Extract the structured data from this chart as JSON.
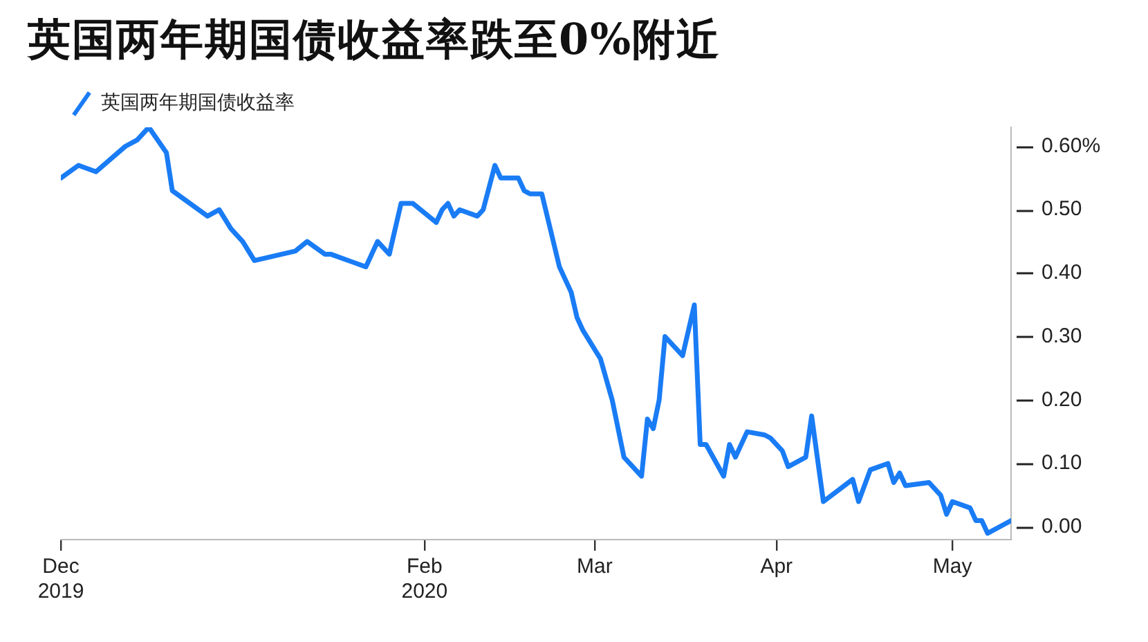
{
  "chart_data": {
    "type": "line",
    "title": "英国两年期国债收益率跌至0%附近",
    "x": [
      "2019-12-01",
      "2019-12-04",
      "2019-12-07",
      "2019-12-12",
      "2019-12-14",
      "2019-12-16",
      "2019-12-19",
      "2019-12-20",
      "2019-12-26",
      "2019-12-28",
      "2019-12-30",
      "2020-01-01",
      "2020-01-03",
      "2020-01-10",
      "2020-01-12",
      "2020-01-15",
      "2020-01-16",
      "2020-01-22",
      "2020-01-24",
      "2020-01-26",
      "2020-01-28",
      "2020-01-30",
      "2020-02-03",
      "2020-02-04",
      "2020-02-05",
      "2020-02-06",
      "2020-02-07",
      "2020-02-10",
      "2020-02-11",
      "2020-02-13",
      "2020-02-14",
      "2020-02-17",
      "2020-02-18",
      "2020-02-19",
      "2020-02-21",
      "2020-02-24",
      "2020-02-26",
      "2020-02-27",
      "2020-02-28",
      "2020-03-02",
      "2020-03-04",
      "2020-03-06",
      "2020-03-09",
      "2020-03-10",
      "2020-03-11",
      "2020-03-12",
      "2020-03-13",
      "2020-03-16",
      "2020-03-17",
      "2020-03-18",
      "2020-03-19",
      "2020-03-20",
      "2020-03-23",
      "2020-03-24",
      "2020-03-25",
      "2020-03-27",
      "2020-03-30",
      "2020-03-31",
      "2020-04-02",
      "2020-04-03",
      "2020-04-06",
      "2020-04-07",
      "2020-04-09",
      "2020-04-14",
      "2020-04-15",
      "2020-04-17",
      "2020-04-20",
      "2020-04-21",
      "2020-04-22",
      "2020-04-23",
      "2020-04-27",
      "2020-04-29",
      "2020-04-30",
      "2020-05-01",
      "2020-05-04",
      "2020-05-05",
      "2020-05-06",
      "2020-05-07",
      "2020-05-11"
    ],
    "series": [
      {
        "name": "英国两年期国债收益率",
        "color": "#1a7cf5",
        "values": [
          0.55,
          0.57,
          0.56,
          0.6,
          0.61,
          0.63,
          0.59,
          0.53,
          0.49,
          0.5,
          0.47,
          0.45,
          0.42,
          0.435,
          0.45,
          0.43,
          0.43,
          0.41,
          0.45,
          0.43,
          0.51,
          0.51,
          0.48,
          0.5,
          0.51,
          0.49,
          0.5,
          0.49,
          0.5,
          0.57,
          0.55,
          0.55,
          0.53,
          0.525,
          0.525,
          0.41,
          0.37,
          0.33,
          0.31,
          0.265,
          0.2,
          0.11,
          0.08,
          0.17,
          0.155,
          0.2,
          0.3,
          0.27,
          0.31,
          0.35,
          0.13,
          0.13,
          0.08,
          0.13,
          0.11,
          0.15,
          0.145,
          0.14,
          0.12,
          0.095,
          0.11,
          0.175,
          0.04,
          0.075,
          0.04,
          0.09,
          0.1,
          0.07,
          0.085,
          0.065,
          0.07,
          0.05,
          0.02,
          0.04,
          0.03,
          0.01,
          0.01,
          -0.01,
          0.01
        ]
      }
    ],
    "xlim": [
      "2019-12-01",
      "2020-05-11"
    ],
    "xticks": [
      {
        "value": "2019-12-01",
        "label": "Dec 2019"
      },
      {
        "value": "2020-02-01",
        "label": "Feb 2020"
      },
      {
        "value": "2020-03-01",
        "label": "Mar"
      },
      {
        "value": "2020-04-01",
        "label": "Apr"
      },
      {
        "value": "2020-05-01",
        "label": "May"
      }
    ],
    "ylim": [
      -0.02,
      0.63
    ],
    "yticks": [
      {
        "value": 0,
        "label": "0.00"
      },
      {
        "value": 0.1,
        "label": "0.10"
      },
      {
        "value": 0.2,
        "label": "0.20"
      },
      {
        "value": 0.3,
        "label": "0.30"
      },
      {
        "value": 0.4,
        "label": "0.40"
      },
      {
        "value": 0.5,
        "label": "0.50"
      },
      {
        "value": 0.6,
        "label": "0.60%"
      }
    ],
    "grid": false,
    "legend": "top left",
    "marker": "none",
    "line_style": "solid"
  }
}
